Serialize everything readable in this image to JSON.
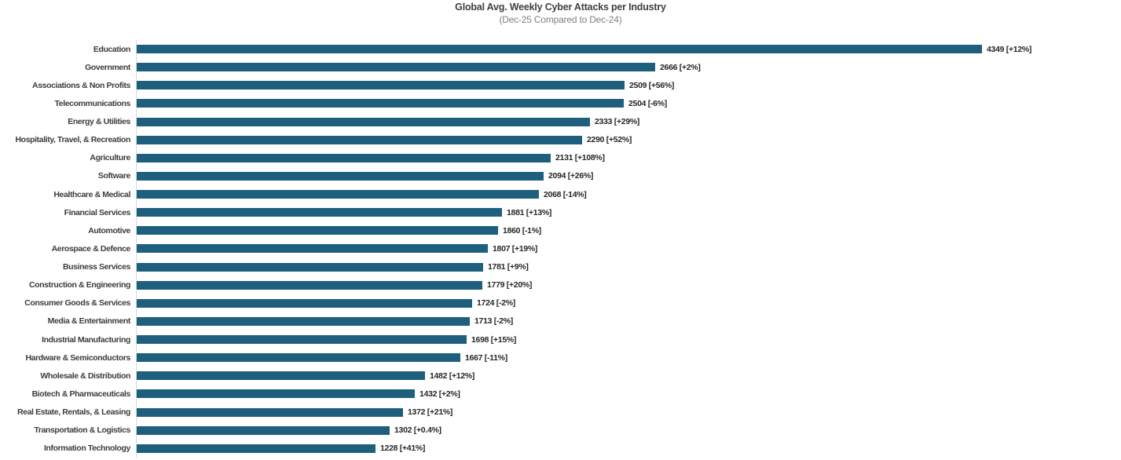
{
  "chart_data": {
    "type": "bar",
    "orientation": "horizontal",
    "title": "Global Avg. Weekly Cyber Attacks per Industry",
    "subtitle": "(Dec-25 Compared to Dec-24)",
    "xlabel": "",
    "ylabel": "",
    "xlim": [
      0,
      4500
    ],
    "grid": "off",
    "legend": "none",
    "bar_color": "#1F5F7E",
    "axis_line_color": "#D9D9D9",
    "value_label_format": "{value} [{change}]",
    "categories": [
      "Education",
      "Government",
      "Associations & Non Profits",
      "Telecommunications",
      "Energy & Utilities",
      "Hospitality, Travel, & Recreation",
      "Agriculture",
      "Software",
      "Healthcare & Medical",
      "Financial Services",
      "Automotive",
      "Aerospace & Defence",
      "Business Services",
      "Construction & Engineering",
      "Consumer Goods & Services",
      "Media & Entertainment",
      "Industrial Manufacturing",
      "Hardware & Semiconductors",
      "Wholesale & Distribution",
      "Biotech & Pharmaceuticals",
      "Real Estate, Rentals, & Leasing",
      "Transportation & Logistics",
      "Information Technology"
    ],
    "values": [
      4349,
      2666,
      2509,
      2504,
      2333,
      2290,
      2131,
      2094,
      2068,
      1881,
      1860,
      1807,
      1781,
      1779,
      1724,
      1713,
      1698,
      1667,
      1482,
      1432,
      1372,
      1302,
      1228
    ],
    "changes": [
      "+12%",
      "+2%",
      "+56%",
      "-6%",
      "+29%",
      "+52%",
      "+108%",
      "+26%",
      "-14%",
      "+13%",
      "-1%",
      "+19%",
      "+9%",
      "+20%",
      "-2%",
      "-2%",
      "+15%",
      "-11%",
      "+12%",
      "+2%",
      "+21%",
      "+0.4%",
      "+41%"
    ]
  }
}
